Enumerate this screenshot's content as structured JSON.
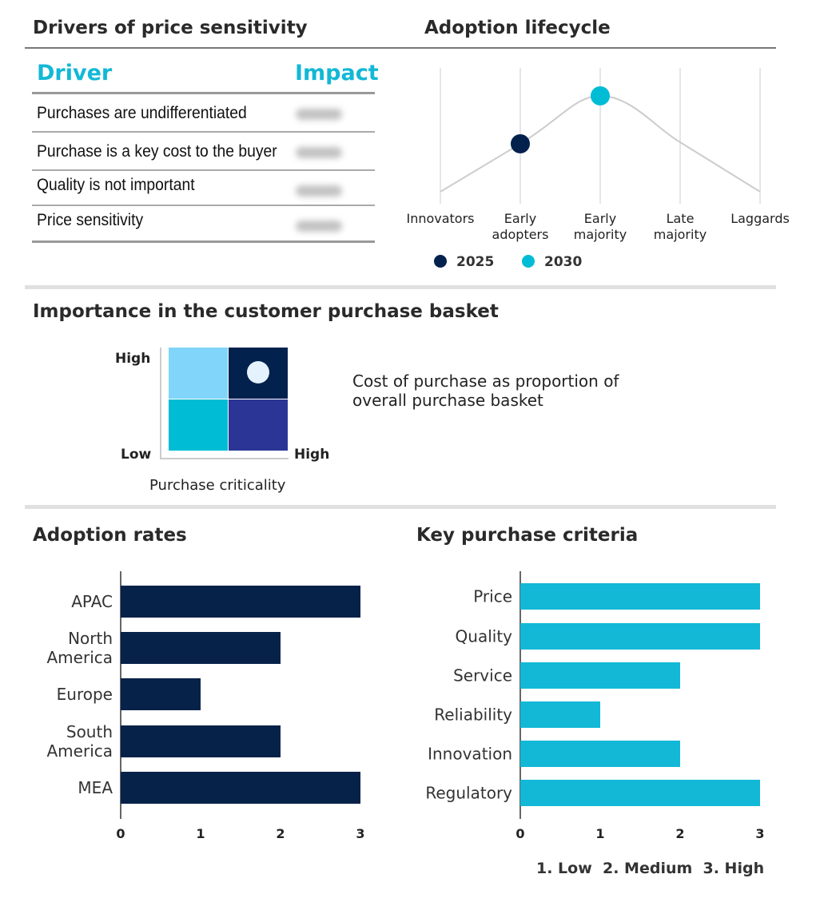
{
  "drivers": {
    "title": "Drivers of price sensitivity",
    "headers": {
      "driver": "Driver",
      "impact": "Impact"
    },
    "rows": [
      "Purchases are undifferentiated",
      "Purchase is a key cost to the buyer",
      "Quality is not important",
      "Price sensitivity"
    ]
  },
  "lifecycle": {
    "title": "Adoption lifecycle",
    "stages": [
      "Innovators",
      "Early adopters",
      "Early majority",
      "Late majority",
      "Laggards"
    ],
    "legend": [
      {
        "label": "2025",
        "color": "#03214d",
        "stage": "Early adopters"
      },
      {
        "label": "2030",
        "color": "#00bcd4",
        "stage": "Early majority"
      }
    ]
  },
  "basket": {
    "title": "Importance in the customer purchase basket",
    "y_high": "High",
    "y_low": "Low",
    "x_high": "High",
    "x_label": "Purchase criticality",
    "description": "Cost of purchase as proportion of overall purchase basket",
    "colors": {
      "top_left": "#81d4fa",
      "top_right": "#03214d",
      "bottom_left": "#00bcd4",
      "bottom_right": "#2b3595",
      "marker": "#e3f2fd"
    },
    "selected": "top_right"
  },
  "chart_data": [
    {
      "type": "bar",
      "orientation": "horizontal",
      "title": "Adoption rates",
      "categories": [
        "APAC",
        "North America",
        "Europe",
        "South America",
        "MEA"
      ],
      "values": [
        3,
        2,
        1,
        2,
        3
      ],
      "xlim": [
        0,
        3
      ],
      "ticks": [
        "0",
        "1",
        "2",
        "3"
      ],
      "color": "#072249"
    },
    {
      "type": "bar",
      "orientation": "horizontal",
      "title": "Key purchase criteria",
      "categories": [
        "Price",
        "Quality",
        "Service",
        "Reliability",
        "Innovation",
        "Regulatory"
      ],
      "values": [
        3,
        3,
        2,
        1,
        2,
        3
      ],
      "xlim": [
        0,
        3
      ],
      "ticks": [
        "0",
        "1",
        "2",
        "3"
      ],
      "color": "#12b8d6"
    }
  ],
  "scale_legend": "1. Low  2. Medium  3. High"
}
